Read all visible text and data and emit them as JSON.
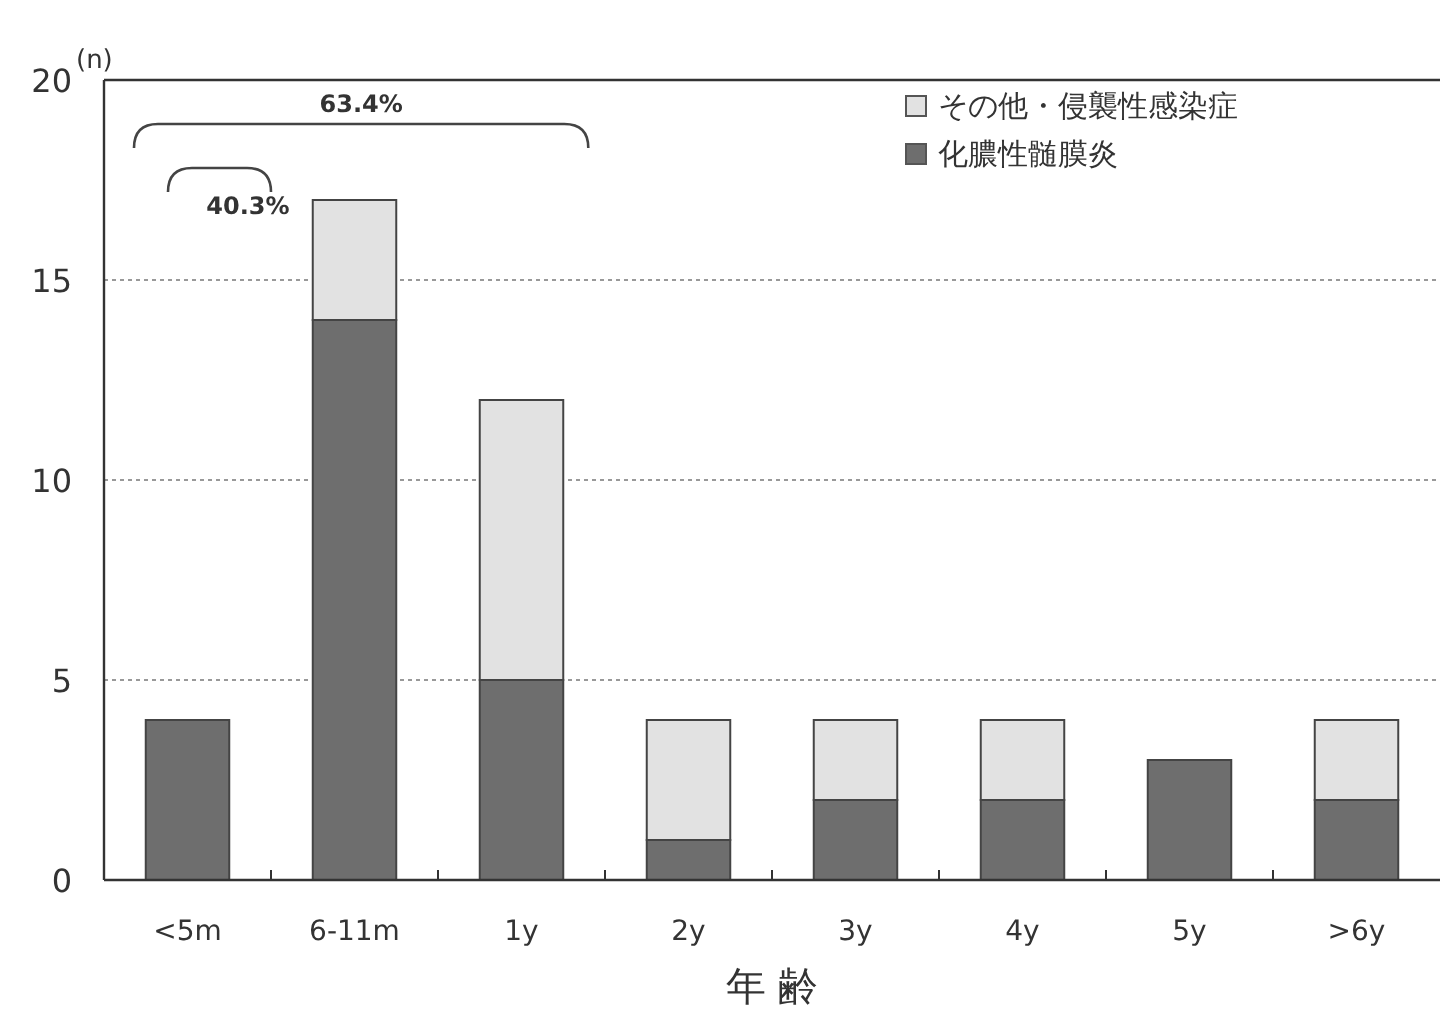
{
  "chart_data": {
    "type": "bar",
    "stacked": true,
    "categories": [
      "<5m",
      "6-11m",
      "1y",
      "2y",
      "3y",
      "4y",
      "5y",
      ">6y"
    ],
    "series": [
      {
        "name": "化膿性髄膜炎",
        "color": "#6e6e6e",
        "values": [
          4,
          14,
          5,
          1,
          2,
          2,
          3,
          2
        ]
      },
      {
        "name": "その他・侵襲性感染症",
        "color": "#e2e2e2",
        "values": [
          0,
          3,
          7,
          3,
          2,
          2,
          0,
          2
        ]
      }
    ],
    "ylim": [
      0,
      20
    ],
    "yticks": [
      0,
      5,
      10,
      15,
      20
    ],
    "ylabel": "(n)",
    "xlabel": "年 齢",
    "grid": "y",
    "legend": "top right",
    "annotations": [
      "63.4%",
      "40.3%"
    ]
  }
}
